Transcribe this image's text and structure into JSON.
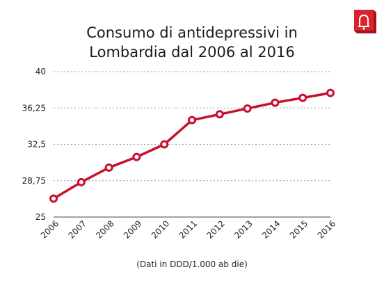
{
  "chart_data": {
    "type": "line",
    "title": "Consumo di antidepressivi in\nLombardia dal 2006 al 2016",
    "categories": [
      "2006",
      "2007",
      "2008",
      "2009",
      "2010",
      "2011",
      "2012",
      "2013",
      "2014",
      "2015",
      "2016"
    ],
    "series": [
      {
        "values": [
          26.9,
          28.6,
          30.1,
          31.2,
          32.5,
          35.0,
          35.6,
          36.2,
          36.8,
          37.3,
          37.8
        ]
      }
    ],
    "yticks": [
      "25",
      "28,75",
      "32,5",
      "36,25",
      "40"
    ],
    "ylim": [
      25,
      40
    ],
    "grid": true,
    "line_color": "#c8102e",
    "note": "(Dati in DDD/1.000 ab die)"
  },
  "logo": {
    "icon": "bell-icon",
    "color": "#d9232d"
  }
}
